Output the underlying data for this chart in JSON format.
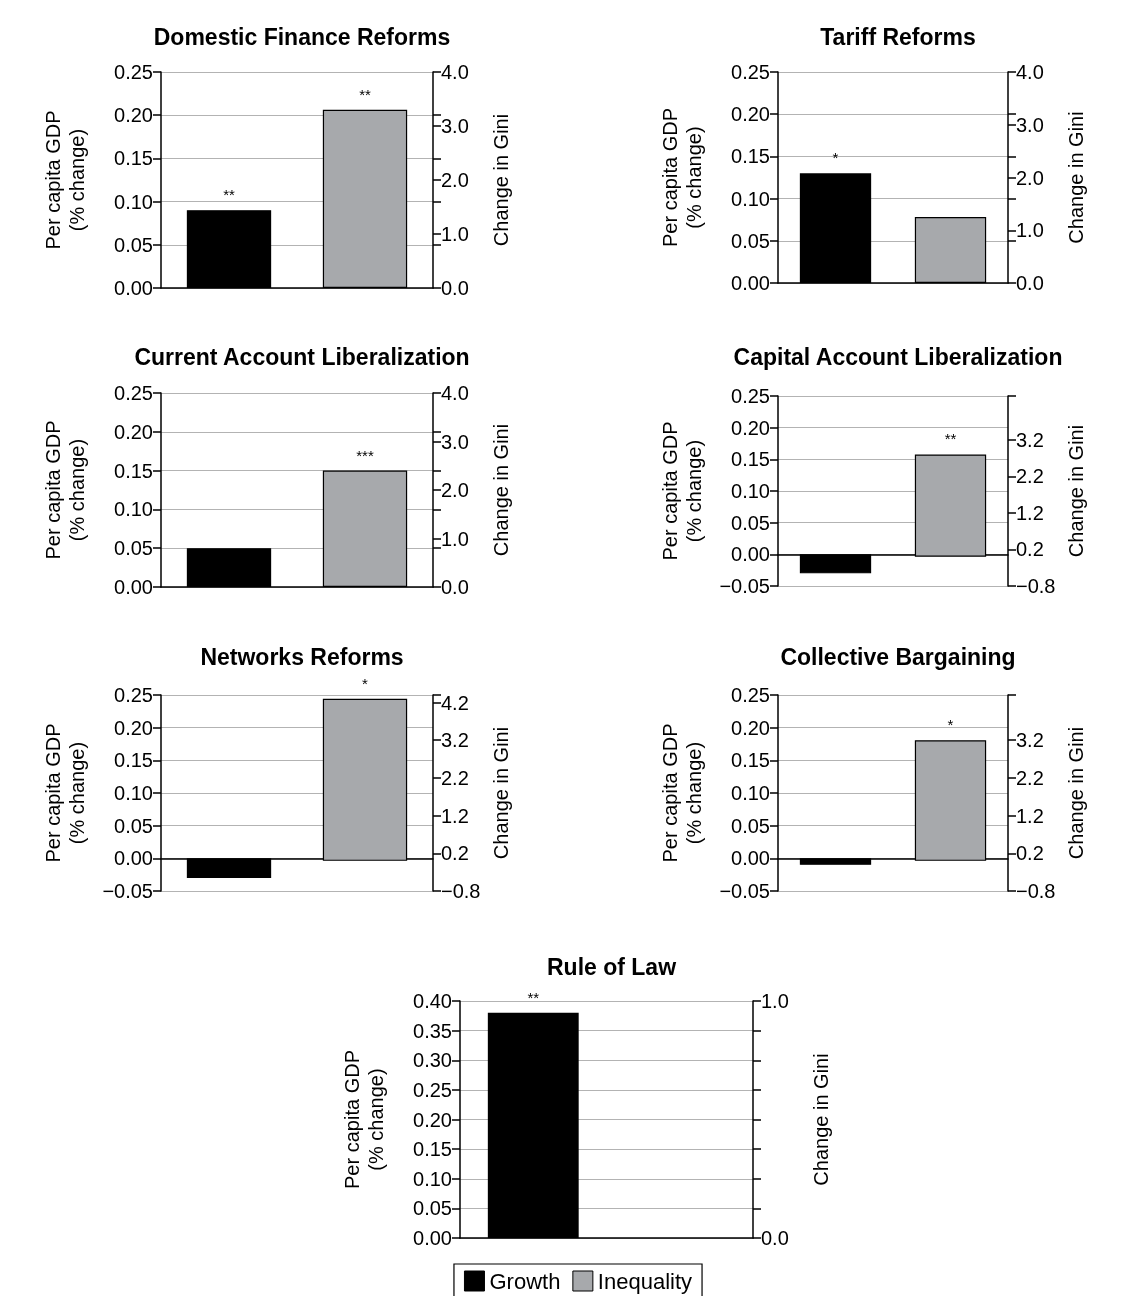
{
  "chart_data": [
    {
      "type": "bar",
      "title": "Domestic Finance Reforms",
      "ylabel": "Per capita GDP\n(% change)",
      "y2label": "Change in Gini",
      "categories": [
        null,
        null
      ],
      "grid": "y",
      "series": [
        {
          "color": "#000000",
          "values": [
            0.09,
            null
          ],
          "value_labels": [
            "**",
            null
          ]
        },
        {
          "color": "#a7a9ac",
          "axis": "y2",
          "values": [
            null,
            3.3
          ],
          "value_labels": [
            null,
            "**"
          ]
        }
      ],
      "ylim": [
        0,
        0.25
      ],
      "yticks": [
        {
          "value": 0,
          "label": "0.00"
        },
        0.05,
        {
          "value": 0.1,
          "label": "0.10"
        },
        0.15,
        {
          "value": 0.2,
          "label": "0.20"
        },
        0.25
      ],
      "y2lim": [
        0,
        4
      ],
      "y2ticks": [
        {
          "value": 0,
          "label": "0.0"
        },
        {
          "value": 0.8,
          "label": null
        },
        {
          "value": 1,
          "label": "1.0"
        },
        {
          "value": 1.6,
          "label": null
        },
        {
          "value": 2,
          "label": "2.0"
        },
        {
          "value": 2.4,
          "label": null
        },
        {
          "value": 3,
          "label": "3.0"
        },
        {
          "value": 3.2,
          "label": null
        },
        {
          "value": 4,
          "label": "4.0"
        }
      ]
    },
    {
      "type": "bar",
      "title": "Tariff Reforms",
      "ylabel": "Per capita GDP\n(% change)",
      "y2label": "Change in Gini",
      "categories": [
        null,
        null
      ],
      "grid": "y",
      "series": [
        {
          "color": "#000000",
          "values": [
            0.13,
            null
          ],
          "value_labels": [
            "*",
            null
          ]
        },
        {
          "color": "#a7a9ac",
          "axis": "y2",
          "values": [
            null,
            1.25
          ],
          "value_labels": [
            null,
            null
          ]
        }
      ],
      "ylim": [
        0,
        0.25
      ],
      "yticks": [
        {
          "value": 0,
          "label": "0.00"
        },
        0.05,
        {
          "value": 0.1,
          "label": "0.10"
        },
        0.15,
        {
          "value": 0.2,
          "label": "0.20"
        },
        0.25
      ],
      "y2lim": [
        0,
        4
      ],
      "y2ticks": [
        {
          "value": 0,
          "label": "0.0"
        },
        {
          "value": 0.8,
          "label": null
        },
        {
          "value": 1,
          "label": "1.0"
        },
        {
          "value": 1.6,
          "label": null
        },
        {
          "value": 2,
          "label": "2.0"
        },
        {
          "value": 2.4,
          "label": null
        },
        {
          "value": 3,
          "label": "3.0"
        },
        {
          "value": 3.2,
          "label": null
        },
        {
          "value": 4,
          "label": "4.0"
        }
      ]
    },
    {
      "type": "bar",
      "title": "Current Account Liberalization",
      "ylabel": "Per capita GDP\n(% change)",
      "y2label": "Change in Gini",
      "categories": [
        null,
        null
      ],
      "grid": "y",
      "series": [
        {
          "color": "#000000",
          "values": [
            0.05,
            null
          ],
          "value_labels": [
            null,
            null
          ]
        },
        {
          "color": "#a7a9ac",
          "axis": "y2",
          "values": [
            null,
            2.4
          ],
          "value_labels": [
            null,
            "***"
          ]
        }
      ],
      "ylim": [
        0,
        0.25
      ],
      "yticks": [
        {
          "value": 0,
          "label": "0.00"
        },
        0.05,
        {
          "value": 0.1,
          "label": "0.10"
        },
        0.15,
        {
          "value": 0.2,
          "label": "0.20"
        },
        0.25
      ],
      "y2lim": [
        0,
        4
      ],
      "y2ticks": [
        {
          "value": 0,
          "label": "0.0"
        },
        {
          "value": 0.8,
          "label": null
        },
        {
          "value": 1,
          "label": "1.0"
        },
        {
          "value": 1.6,
          "label": null
        },
        {
          "value": 2,
          "label": "2.0"
        },
        {
          "value": 2.4,
          "label": null
        },
        {
          "value": 3,
          "label": "3.0"
        },
        {
          "value": 3.2,
          "label": null
        },
        {
          "value": 4,
          "label": "4.0"
        }
      ]
    },
    {
      "type": "bar",
      "title": "Capital Account Liberalization",
      "ylabel": "Per capita GDP\n(% change)",
      "y2label": "Change in Gini",
      "categories": [
        null,
        null
      ],
      "grid": "y",
      "series": [
        {
          "color": "#000000",
          "values": [
            -0.03,
            null
          ],
          "value_labels": [
            null,
            null
          ]
        },
        {
          "color": "#a7a9ac",
          "axis": "y2",
          "values": [
            null,
            2.8
          ],
          "value_labels": [
            null,
            "**"
          ]
        }
      ],
      "ylim": [
        -0.05,
        0.25
      ],
      "yticks": [
        {
          "value": -0.05,
          "label": "−0.05"
        },
        {
          "value": 0,
          "label": "0.00"
        },
        0.05,
        {
          "value": 0.1,
          "label": "0.10"
        },
        0.15,
        {
          "value": 0.2,
          "label": "0.20"
        },
        0.25
      ],
      "y2lim": [
        -0.8,
        4.4
      ],
      "y2ticks": [
        {
          "value": -0.8,
          "label": "−0.8"
        },
        0.2,
        1.2,
        2.2,
        3.2,
        {
          "value": 4.4,
          "label": null
        }
      ]
    },
    {
      "type": "bar",
      "title": "Networks Reforms",
      "ylabel": "Per capita GDP\n(% change)",
      "y2label": "Change in Gini",
      "categories": [
        null,
        null
      ],
      "grid": "y",
      "series": [
        {
          "color": "#000000",
          "values": [
            -0.03,
            null
          ],
          "value_labels": [
            null,
            null
          ]
        },
        {
          "color": "#a7a9ac",
          "axis": "y2",
          "values": [
            null,
            4.3
          ],
          "value_labels": [
            null,
            "*"
          ]
        }
      ],
      "ylim": [
        -0.05,
        0.25
      ],
      "yticks": [
        {
          "value": -0.05,
          "label": "−0.05"
        },
        {
          "value": 0,
          "label": "0.00"
        },
        0.05,
        {
          "value": 0.1,
          "label": "0.10"
        },
        0.15,
        {
          "value": 0.2,
          "label": "0.20"
        },
        0.25
      ],
      "y2lim": [
        -0.8,
        4.4
      ],
      "y2ticks": [
        {
          "value": -0.8,
          "label": "−0.8"
        },
        0.2,
        1.2,
        2.2,
        3.2,
        4.2,
        {
          "value": 4.4,
          "label": null
        }
      ]
    },
    {
      "type": "bar",
      "title": "Collective Bargaining",
      "ylabel": "Per capita GDP\n(% change)",
      "y2label": "Change in Gini",
      "categories": [
        null,
        null
      ],
      "grid": "y",
      "series": [
        {
          "color": "#000000",
          "values": [
            -0.01,
            null
          ],
          "value_labels": [
            null,
            null
          ]
        },
        {
          "color": "#a7a9ac",
          "axis": "y2",
          "values": [
            null,
            3.2
          ],
          "value_labels": [
            null,
            "*"
          ]
        }
      ],
      "ylim": [
        -0.05,
        0.25
      ],
      "yticks": [
        {
          "value": -0.05,
          "label": "−0.05"
        },
        {
          "value": 0,
          "label": "0.00"
        },
        0.05,
        {
          "value": 0.1,
          "label": "0.10"
        },
        0.15,
        {
          "value": 0.2,
          "label": "0.20"
        },
        0.25
      ],
      "y2lim": [
        -0.8,
        4.4
      ],
      "y2ticks": [
        {
          "value": -0.8,
          "label": "−0.8"
        },
        0.2,
        1.2,
        2.2,
        3.2,
        {
          "value": 4.4,
          "label": null
        }
      ]
    },
    {
      "type": "bar",
      "title": "Rule of Law",
      "ylabel": "Per capita GDP\n(% change)",
      "y2label": "Change in Gini",
      "categories": [
        null,
        null
      ],
      "grid": "y",
      "legend": "bottom",
      "series": [
        {
          "name": "Growth",
          "color": "#000000",
          "values": [
            0.38,
            null
          ],
          "value_labels": [
            "**",
            null
          ]
        },
        {
          "name": "Inequality",
          "color": "#a7a9ac",
          "axis": "y2",
          "values": [
            null,
            null
          ],
          "value_labels": [
            null,
            null
          ]
        }
      ],
      "ylim": [
        0,
        0.4
      ],
      "yticks": [
        {
          "value": 0,
          "label": "0.00"
        },
        0.05,
        {
          "value": 0.1,
          "label": "0.10"
        },
        0.15,
        {
          "value": 0.2,
          "label": "0.20"
        },
        0.25,
        {
          "value": 0.3,
          "label": "0.30"
        },
        0.35,
        {
          "value": 0.4,
          "label": "0.40"
        }
      ],
      "y2lim": [
        0,
        1
      ],
      "y2ticks": [
        {
          "value": 0,
          "label": "0.0"
        },
        {
          "value": 0.125,
          "label": null
        },
        {
          "value": 0.25,
          "label": null
        },
        {
          "value": 0.375,
          "label": null
        },
        {
          "value": 0.5,
          "label": null
        },
        {
          "value": 0.625,
          "label": null
        },
        {
          "value": 0.75,
          "label": null
        },
        {
          "value": 0.875,
          "label": null
        },
        {
          "value": 1,
          "label": "1.0"
        }
      ]
    }
  ]
}
